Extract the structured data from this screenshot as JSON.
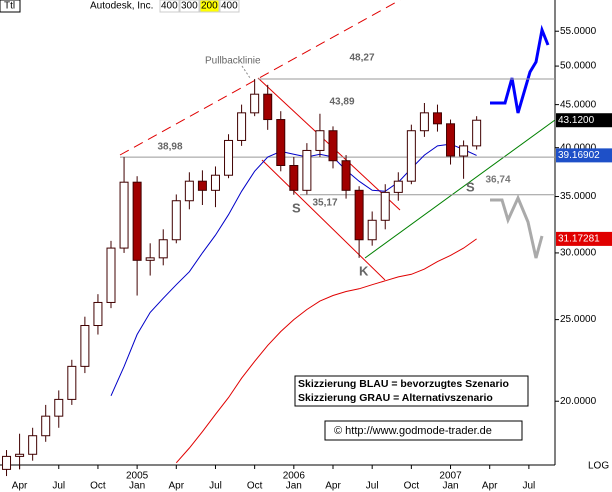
{
  "chart_data": {
    "type": "candlestick",
    "symbol": "Ttl",
    "title": "Autodesk, Inc.",
    "header_tags": [
      "400",
      "300",
      "200",
      "400"
    ],
    "x": [
      2,
      3,
      4,
      5,
      6,
      7,
      8,
      9,
      10,
      11,
      12,
      13,
      14,
      15,
      16,
      17,
      18,
      19,
      20,
      21,
      22,
      23,
      24,
      25,
      26,
      27,
      28,
      29,
      30,
      31,
      32,
      33,
      34,
      35,
      36,
      37,
      38
    ],
    "open": [
      16.6,
      17.2,
      17.3,
      18.2,
      19.2,
      20.1,
      22.0,
      24.6,
      26.2,
      30.4,
      36.4,
      29.4,
      29.6,
      31.1,
      34.6,
      36.5,
      35.6,
      37.1,
      40.8,
      44.0,
      46.3,
      43.2,
      38.1,
      35.6,
      39.7,
      41.9,
      38.6,
      35.6,
      31.1,
      32.8,
      35.4,
      36.5,
      41.9,
      44.0,
      42.7,
      39.1,
      40.2
    ],
    "high": [
      17.5,
      18.3,
      18.6,
      19.8,
      20.6,
      22.4,
      25.2,
      26.8,
      31.0,
      38.98,
      37.0,
      30.8,
      32.0,
      35.2,
      37.4,
      37.6,
      38.0,
      41.5,
      45.0,
      48.27,
      47.5,
      44.2,
      39.0,
      40.5,
      43.89,
      42.4,
      39.2,
      36.0,
      33.6,
      36.2,
      37.4,
      42.6,
      45.2,
      45.0,
      43.2,
      40.8,
      43.6
    ],
    "low": [
      16.3,
      16.6,
      17.0,
      17.9,
      18.6,
      19.8,
      21.6,
      24.0,
      25.8,
      30.0,
      26.7,
      28.2,
      29.0,
      30.8,
      33.8,
      34.2,
      34.0,
      36.8,
      40.2,
      43.6,
      42.0,
      37.5,
      35.17,
      35.2,
      39.0,
      37.8,
      34.8,
      29.6,
      30.6,
      32.0,
      34.6,
      36.2,
      41.2,
      41.8,
      38.2,
      36.74,
      39.8
    ],
    "close": [
      17.2,
      17.3,
      18.2,
      19.2,
      20.1,
      22.0,
      24.6,
      26.2,
      30.4,
      36.4,
      29.4,
      29.6,
      31.1,
      34.6,
      36.5,
      35.6,
      37.1,
      40.8,
      44.0,
      46.3,
      43.2,
      38.1,
      35.6,
      39.7,
      41.9,
      38.6,
      35.6,
      31.1,
      32.8,
      35.4,
      36.5,
      41.9,
      44.0,
      42.7,
      39.1,
      40.2,
      43.12
    ],
    "moving_averages": [
      {
        "color": "#0000c8",
        "x": [
          10,
          11,
          12,
          13,
          14,
          15,
          16,
          17,
          18,
          19,
          20,
          21,
          22,
          23,
          24,
          25,
          26,
          27,
          28,
          29,
          30,
          31,
          32,
          33,
          34,
          35,
          36,
          37,
          38
        ],
        "values": [
          20.3,
          22.0,
          24.0,
          25.5,
          26.5,
          27.5,
          28.5,
          30.0,
          31.5,
          33.3,
          35.5,
          37.5,
          39.0,
          39.6,
          39.3,
          39.0,
          39.3,
          39.0,
          37.6,
          36.5,
          35.6,
          35.5,
          36.4,
          37.8,
          39.2,
          40.2,
          40.4,
          39.8,
          39.16902
        ]
      },
      {
        "color": "#e00000",
        "x": [
          15,
          16,
          17,
          18,
          19,
          20,
          21,
          22,
          23,
          24,
          25,
          26,
          27,
          28,
          29,
          30,
          31,
          32,
          33,
          34,
          35,
          36,
          37,
          38
        ],
        "values": [
          16.9,
          17.6,
          18.4,
          19.3,
          20.2,
          21.3,
          22.3,
          23.3,
          24.2,
          25.0,
          25.7,
          26.3,
          26.7,
          27.0,
          27.2,
          27.5,
          27.8,
          28.1,
          28.3,
          28.7,
          29.3,
          29.8,
          30.4,
          31.17281
        ]
      }
    ],
    "price_tags": [
      {
        "value": 43.12,
        "label": "43.1200",
        "color": "#000000"
      },
      {
        "value": 39.16902,
        "label": "39.16902",
        "color": "#1e50c8"
      },
      {
        "value": 31.17281,
        "label": "31.17281",
        "color": "#e00000"
      }
    ],
    "levels": [
      {
        "value": 48.27,
        "label": "48,27"
      },
      {
        "value": 43.89,
        "label": "43,89"
      },
      {
        "value": 38.98,
        "label": "38,98"
      },
      {
        "value": 35.17,
        "label": "35,17"
      },
      {
        "value": 36.74,
        "label": "36,74"
      }
    ],
    "annotations": [
      "Pullbacklinie",
      "S",
      "S",
      "K"
    ],
    "legend_lines": [
      "Skizzierung BLAU = bevorzugtes Szenario",
      "Skizzierung GRAU = Alternativszenario"
    ],
    "copyright": "© http://www.godmode-trader.de",
    "scale_label": "LOG",
    "log_scale": true,
    "ylim": [
      16.8,
      59.9
    ],
    "yticks": [
      {
        "value": 55,
        "label": "55.0000"
      },
      {
        "value": 50,
        "label": "50.0000"
      },
      {
        "value": 45,
        "label": "45.0000"
      },
      {
        "value": 40,
        "label": "40.0000"
      },
      {
        "value": 35,
        "label": "35.0000"
      },
      {
        "value": 30,
        "label": "30.0000"
      },
      {
        "value": 25,
        "label": "25.0000"
      },
      {
        "value": 20,
        "label": "20.0000"
      }
    ],
    "xlim": [
      1.5,
      44
    ],
    "xticks": [
      {
        "value": 3,
        "label": "Apr"
      },
      {
        "value": 6,
        "label": "Jul"
      },
      {
        "value": 9,
        "label": "Oct"
      },
      {
        "value": 12,
        "label": "Jan"
      },
      {
        "value": 15,
        "label": "Apr"
      },
      {
        "value": 18,
        "label": "Jul"
      },
      {
        "value": 21,
        "label": "Oct"
      },
      {
        "value": 24,
        "label": "Jan"
      },
      {
        "value": 27,
        "label": "Apr"
      },
      {
        "value": 30,
        "label": "Jul"
      },
      {
        "value": 33,
        "label": "Oct"
      },
      {
        "value": 36,
        "label": "Jan"
      },
      {
        "value": 39,
        "label": "Apr"
      },
      {
        "value": 42,
        "label": "Jul"
      }
    ],
    "year_labels": [
      {
        "value": 12,
        "label": "2005"
      },
      {
        "value": 24,
        "label": "2006"
      },
      {
        "value": 36,
        "label": "2007"
      }
    ],
    "up_color": "#ffffff",
    "down_color": "#a00000",
    "wick_color": "#400000"
  }
}
